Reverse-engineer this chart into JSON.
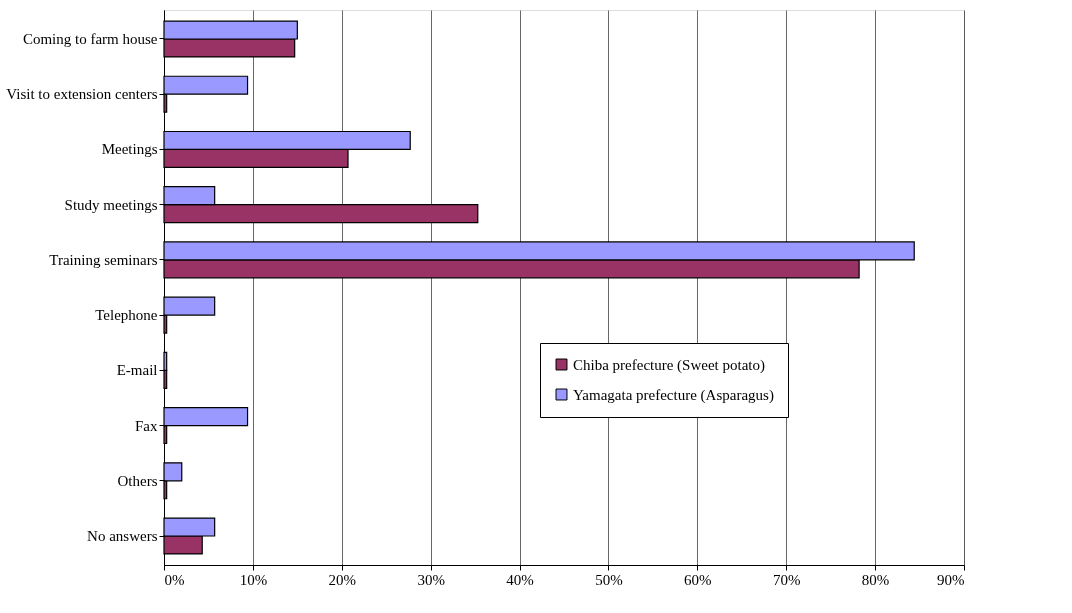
{
  "chart_data": {
    "type": "bar",
    "orientation": "horizontal",
    "categories": [
      "Coming to farm house",
      "Visit to extension centers",
      "Meetings",
      "Study meetings",
      "Training seminars",
      "Telephone",
      "E-mail",
      "Fax",
      "Others",
      "No answers"
    ],
    "series": [
      {
        "name": "Chiba prefecture (Sweet potato)",
        "color": "#993366",
        "values": [
          14.7,
          0.3,
          20.7,
          35.3,
          78.2,
          0.3,
          0.3,
          0.3,
          0.3,
          4.3
        ]
      },
      {
        "name": "Yamagata prefecture (Asparagus)",
        "color": "#9999ff",
        "values": [
          15,
          9.4,
          27.7,
          5.7,
          84.4,
          5.7,
          0.3,
          9.4,
          2,
          5.7
        ]
      }
    ],
    "xlim": [
      0,
      90
    ],
    "xticks": [
      {
        "value": 0,
        "label": "0%"
      },
      {
        "value": 10,
        "label": "10%"
      },
      {
        "value": 20,
        "label": "20%"
      },
      {
        "value": 30,
        "label": "30%"
      },
      {
        "value": 40,
        "label": "40%"
      },
      {
        "value": 50,
        "label": "50%"
      },
      {
        "value": 60,
        "label": "60%"
      },
      {
        "value": 70,
        "label": "70%"
      },
      {
        "value": 80,
        "label": "80%"
      },
      {
        "value": 90,
        "label": "90%"
      }
    ],
    "grid": "x",
    "legend": "right"
  }
}
